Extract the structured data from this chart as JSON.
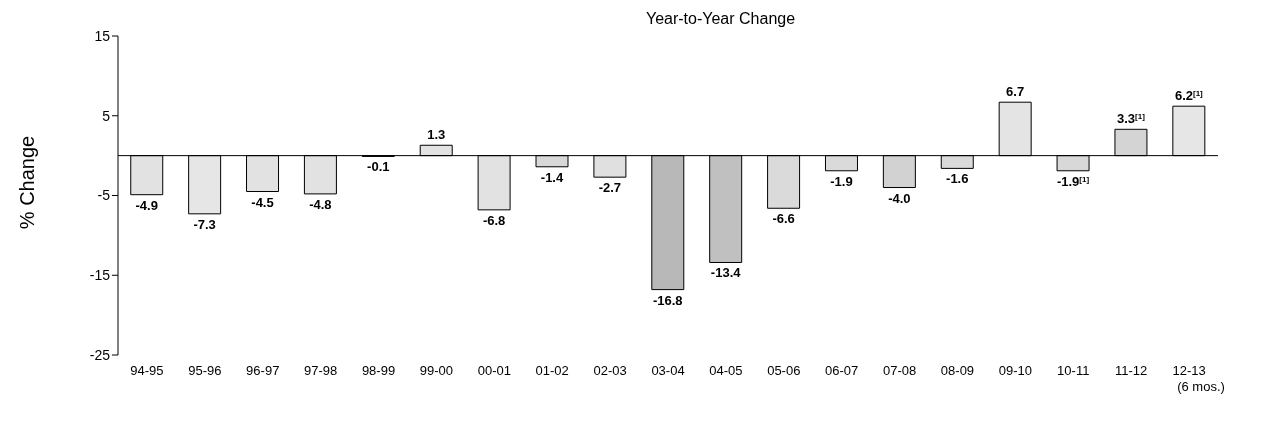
{
  "chart_data": {
    "type": "bar",
    "title": "Year-to-Year Change",
    "ylabel": "% Change",
    "categories": [
      "94-95",
      "95-96",
      "96-97",
      "97-98",
      "98-99",
      "99-00",
      "00-01",
      "01-02",
      "02-03",
      "03-04",
      "04-05",
      "05-06",
      "06-07",
      "07-08",
      "08-09",
      "09-10",
      "10-11",
      "11-12",
      "12-13\n(6 mos.)"
    ],
    "values": [
      -4.9,
      -7.3,
      -4.5,
      -4.8,
      -0.1,
      1.3,
      -6.8,
      -1.4,
      -2.7,
      -16.8,
      -13.4,
      -6.6,
      -1.9,
      -4.0,
      -1.6,
      6.7,
      -1.9,
      3.3,
      6.2
    ],
    "value_labels": [
      "-4.9",
      "-7.3",
      "-4.5",
      "-4.8",
      "-0.1",
      "1.3",
      "-6.8",
      "-1.4",
      "-2.7",
      "-16.8",
      "-13.4",
      "-6.6",
      "-1.9",
      "-4.0",
      "-1.6",
      "6.7",
      "-1.9$^{[1]}$",
      "3.3$^{[1]}$",
      "6.2$^{[1]}$"
    ],
    "colors": [
      "#e2e2e2",
      "#e6e6e6",
      "#e2e2e2",
      "#e2e2e2",
      "#d0d0d0",
      "#e2e2e2",
      "#e2e2e2",
      "#d8d8d8",
      "#e0e0e0",
      "#b8b8b8",
      "#c0c0c0",
      "#dadada",
      "#dadada",
      "#d2d2d2",
      "#dadada",
      "#e4e4e4",
      "#d8d8d8",
      "#d4d4d4",
      "#e6e6e6"
    ],
    "ylim": [
      -25,
      15
    ],
    "yticks": [
      -25,
      -15,
      -5,
      5,
      15
    ],
    "grid": false
  }
}
